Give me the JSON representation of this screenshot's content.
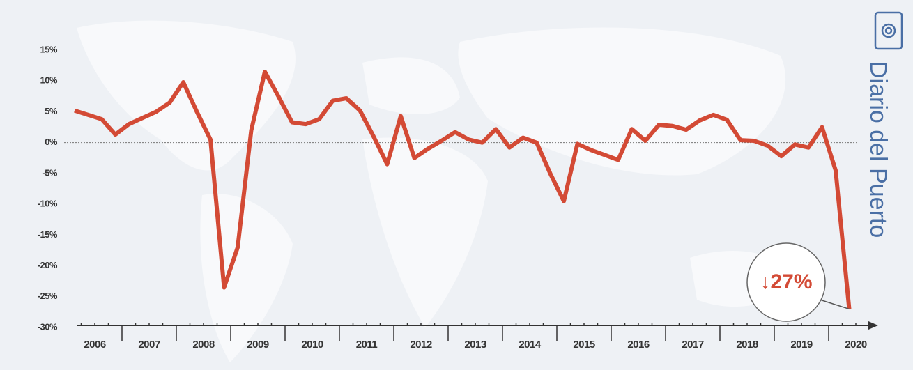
{
  "watermark": "Diario del Puerto",
  "chart_data": {
    "type": "line",
    "years": [
      "2006",
      "2007",
      "2008",
      "2009",
      "2010",
      "2011",
      "2012",
      "2013",
      "2014",
      "2015",
      "2016",
      "2017",
      "2018",
      "2019",
      "2020"
    ],
    "values": [
      5.2,
      4.5,
      3.8,
      1.3,
      3.0,
      4.0,
      5.0,
      6.5,
      9.8,
      5.0,
      0.5,
      -23.5,
      -17,
      2,
      11.5,
      7.5,
      3.3,
      3.0,
      3.8,
      6.8,
      7.2,
      5.2,
      1,
      -3.5,
      4.3,
      -2.5,
      -1,
      0.3,
      1.7,
      0.5,
      0,
      2.2,
      -0.8,
      0.8,
      0,
      -5,
      -9.5,
      -0.2,
      -1.2,
      -2,
      -2.8,
      2.2,
      0.3,
      2.9,
      2.7,
      2.1,
      3.6,
      4.5,
      3.7,
      0.4,
      0.3,
      -0.5,
      -2.2,
      -0.3,
      -0.8,
      2.5,
      -4.5,
      -27
    ],
    "color": "#d34a35",
    "ylim": [
      -30,
      15
    ],
    "yticks": [
      {
        "value": 15,
        "label": "15%"
      },
      {
        "value": 10,
        "label": "10%"
      },
      {
        "value": 5,
        "label": "5%"
      },
      {
        "value": 0,
        "label": "0%"
      },
      {
        "value": -5,
        "label": "-5%"
      },
      {
        "value": -10,
        "label": "-10%"
      },
      {
        "value": -15,
        "label": "-15%"
      },
      {
        "value": -20,
        "label": "-20%"
      },
      {
        "value": -25,
        "label": "-25%"
      },
      {
        "value": -30,
        "label": "-30%"
      }
    ],
    "annotation": "↓27%"
  }
}
